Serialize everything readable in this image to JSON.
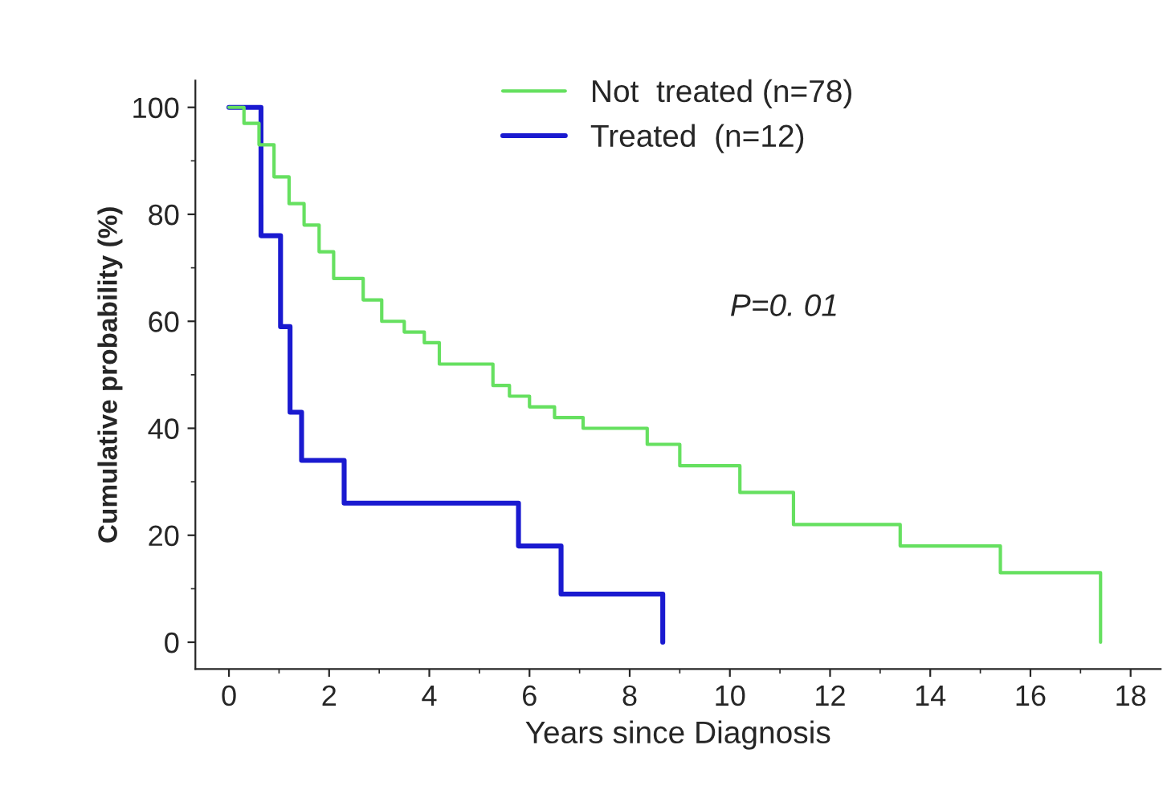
{
  "chart_data": {
    "type": "step",
    "xlabel": "Years since Diagnosis",
    "ylabel": "Cumulative probability (%)",
    "xlim": [
      -0.67,
      18.6
    ],
    "ylim": [
      -5,
      105
    ],
    "xticks": [
      0,
      2,
      4,
      6,
      8,
      10,
      12,
      14,
      16,
      18
    ],
    "yticks": [
      0,
      20,
      40,
      60,
      80,
      100
    ],
    "grid": false,
    "legend": "top",
    "annotations": [
      "P=0. 01"
    ],
    "series": [
      {
        "name": "Not  treated (n=78)",
        "color": "#66e060",
        "x": [
          0,
          0.3,
          0.6,
          0.9,
          1.2,
          1.5,
          1.8,
          2.09,
          2.68,
          3.05,
          3.5,
          3.9,
          4.2,
          5.27,
          5.6,
          6.0,
          6.5,
          7.07,
          8.35,
          9.0,
          10.2,
          11.27,
          13.4,
          15.4,
          17.4
        ],
        "values": [
          100,
          97,
          93,
          87,
          82,
          78,
          73,
          68,
          64,
          60,
          58,
          56,
          52,
          48,
          46,
          44,
          42,
          40,
          37,
          33,
          28,
          22,
          18,
          13,
          0
        ]
      },
      {
        "name": "Treated  (n=12)",
        "color": "#1a1ad0",
        "x": [
          0,
          0.64,
          1.03,
          1.22,
          1.45,
          2.3,
          5.78,
          6.63,
          8.66
        ],
        "values": [
          100,
          76,
          59,
          43,
          34,
          26,
          18,
          9,
          0
        ]
      }
    ]
  }
}
